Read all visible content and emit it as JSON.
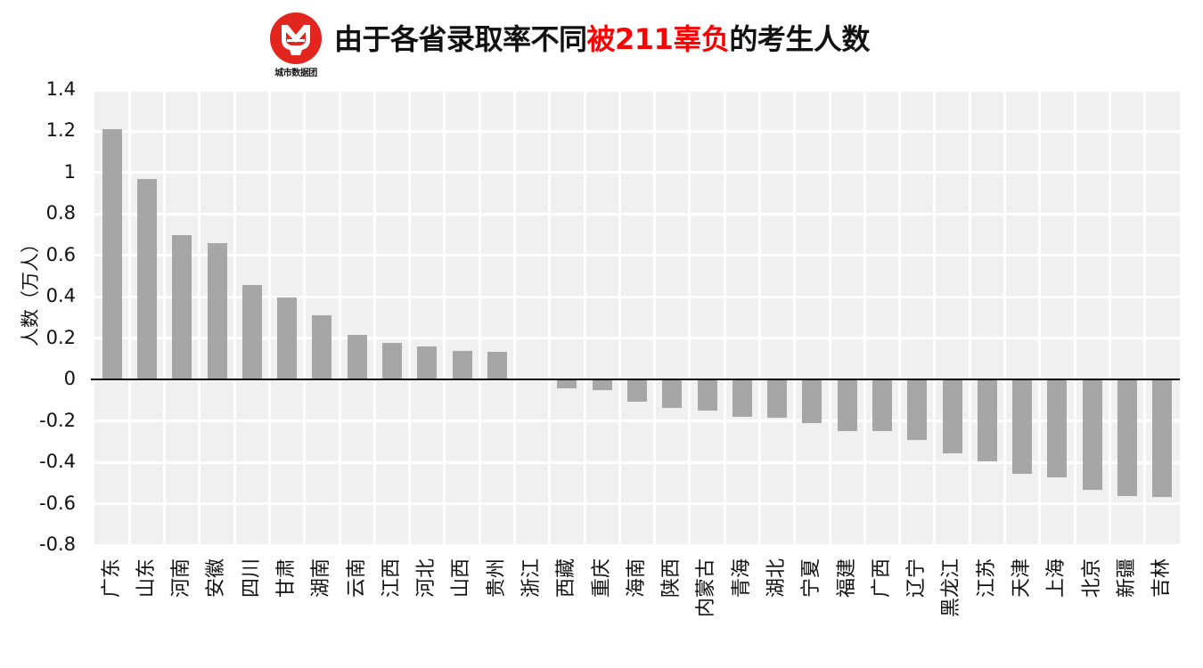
{
  "header": {
    "logo_caption": "城市数据团",
    "title_part1": "由于各省录取率不同",
    "title_highlight": "被211辜负",
    "title_part2": "的考生人数",
    "highlight_color": "#ff0000",
    "logo_color": "#e2261d"
  },
  "chart_data": {
    "type": "bar",
    "title": "由于各省录取率不同被211辜负的考生人数",
    "xlabel": "",
    "ylabel": "人数（万人）",
    "ylim": [
      -0.8,
      1.4
    ],
    "yticks": [
      "1.4",
      "1.2",
      "1",
      "0.8",
      "0.6",
      "0.4",
      "0.2",
      "0",
      "-0.2",
      "-0.4",
      "-0.6",
      "-0.8"
    ],
    "grid": true,
    "legend": null,
    "bar_color": "#a6a6a6",
    "background_color": "#f0f0f0",
    "categories": [
      "广东",
      "山东",
      "河南",
      "安徽",
      "四川",
      "甘肃",
      "湖南",
      "云南",
      "江西",
      "河北",
      "山西",
      "贵州",
      "浙江",
      "西藏",
      "重庆",
      "海南",
      "陕西",
      "内蒙古",
      "青海",
      "湖北",
      "宁夏",
      "福建",
      "广西",
      "辽宁",
      "黑龙江",
      "江苏",
      "天津",
      "上海",
      "北京",
      "新疆",
      "吉林"
    ],
    "values": [
      1.21,
      0.97,
      0.7,
      0.66,
      0.456,
      0.396,
      0.31,
      0.215,
      0.176,
      0.16,
      0.138,
      0.133,
      0.0,
      -0.042,
      -0.05,
      -0.106,
      -0.136,
      -0.149,
      -0.179,
      -0.184,
      -0.21,
      -0.248,
      -0.248,
      -0.291,
      -0.356,
      -0.394,
      -0.455,
      -0.472,
      -0.532,
      -0.562,
      -0.566
    ]
  }
}
